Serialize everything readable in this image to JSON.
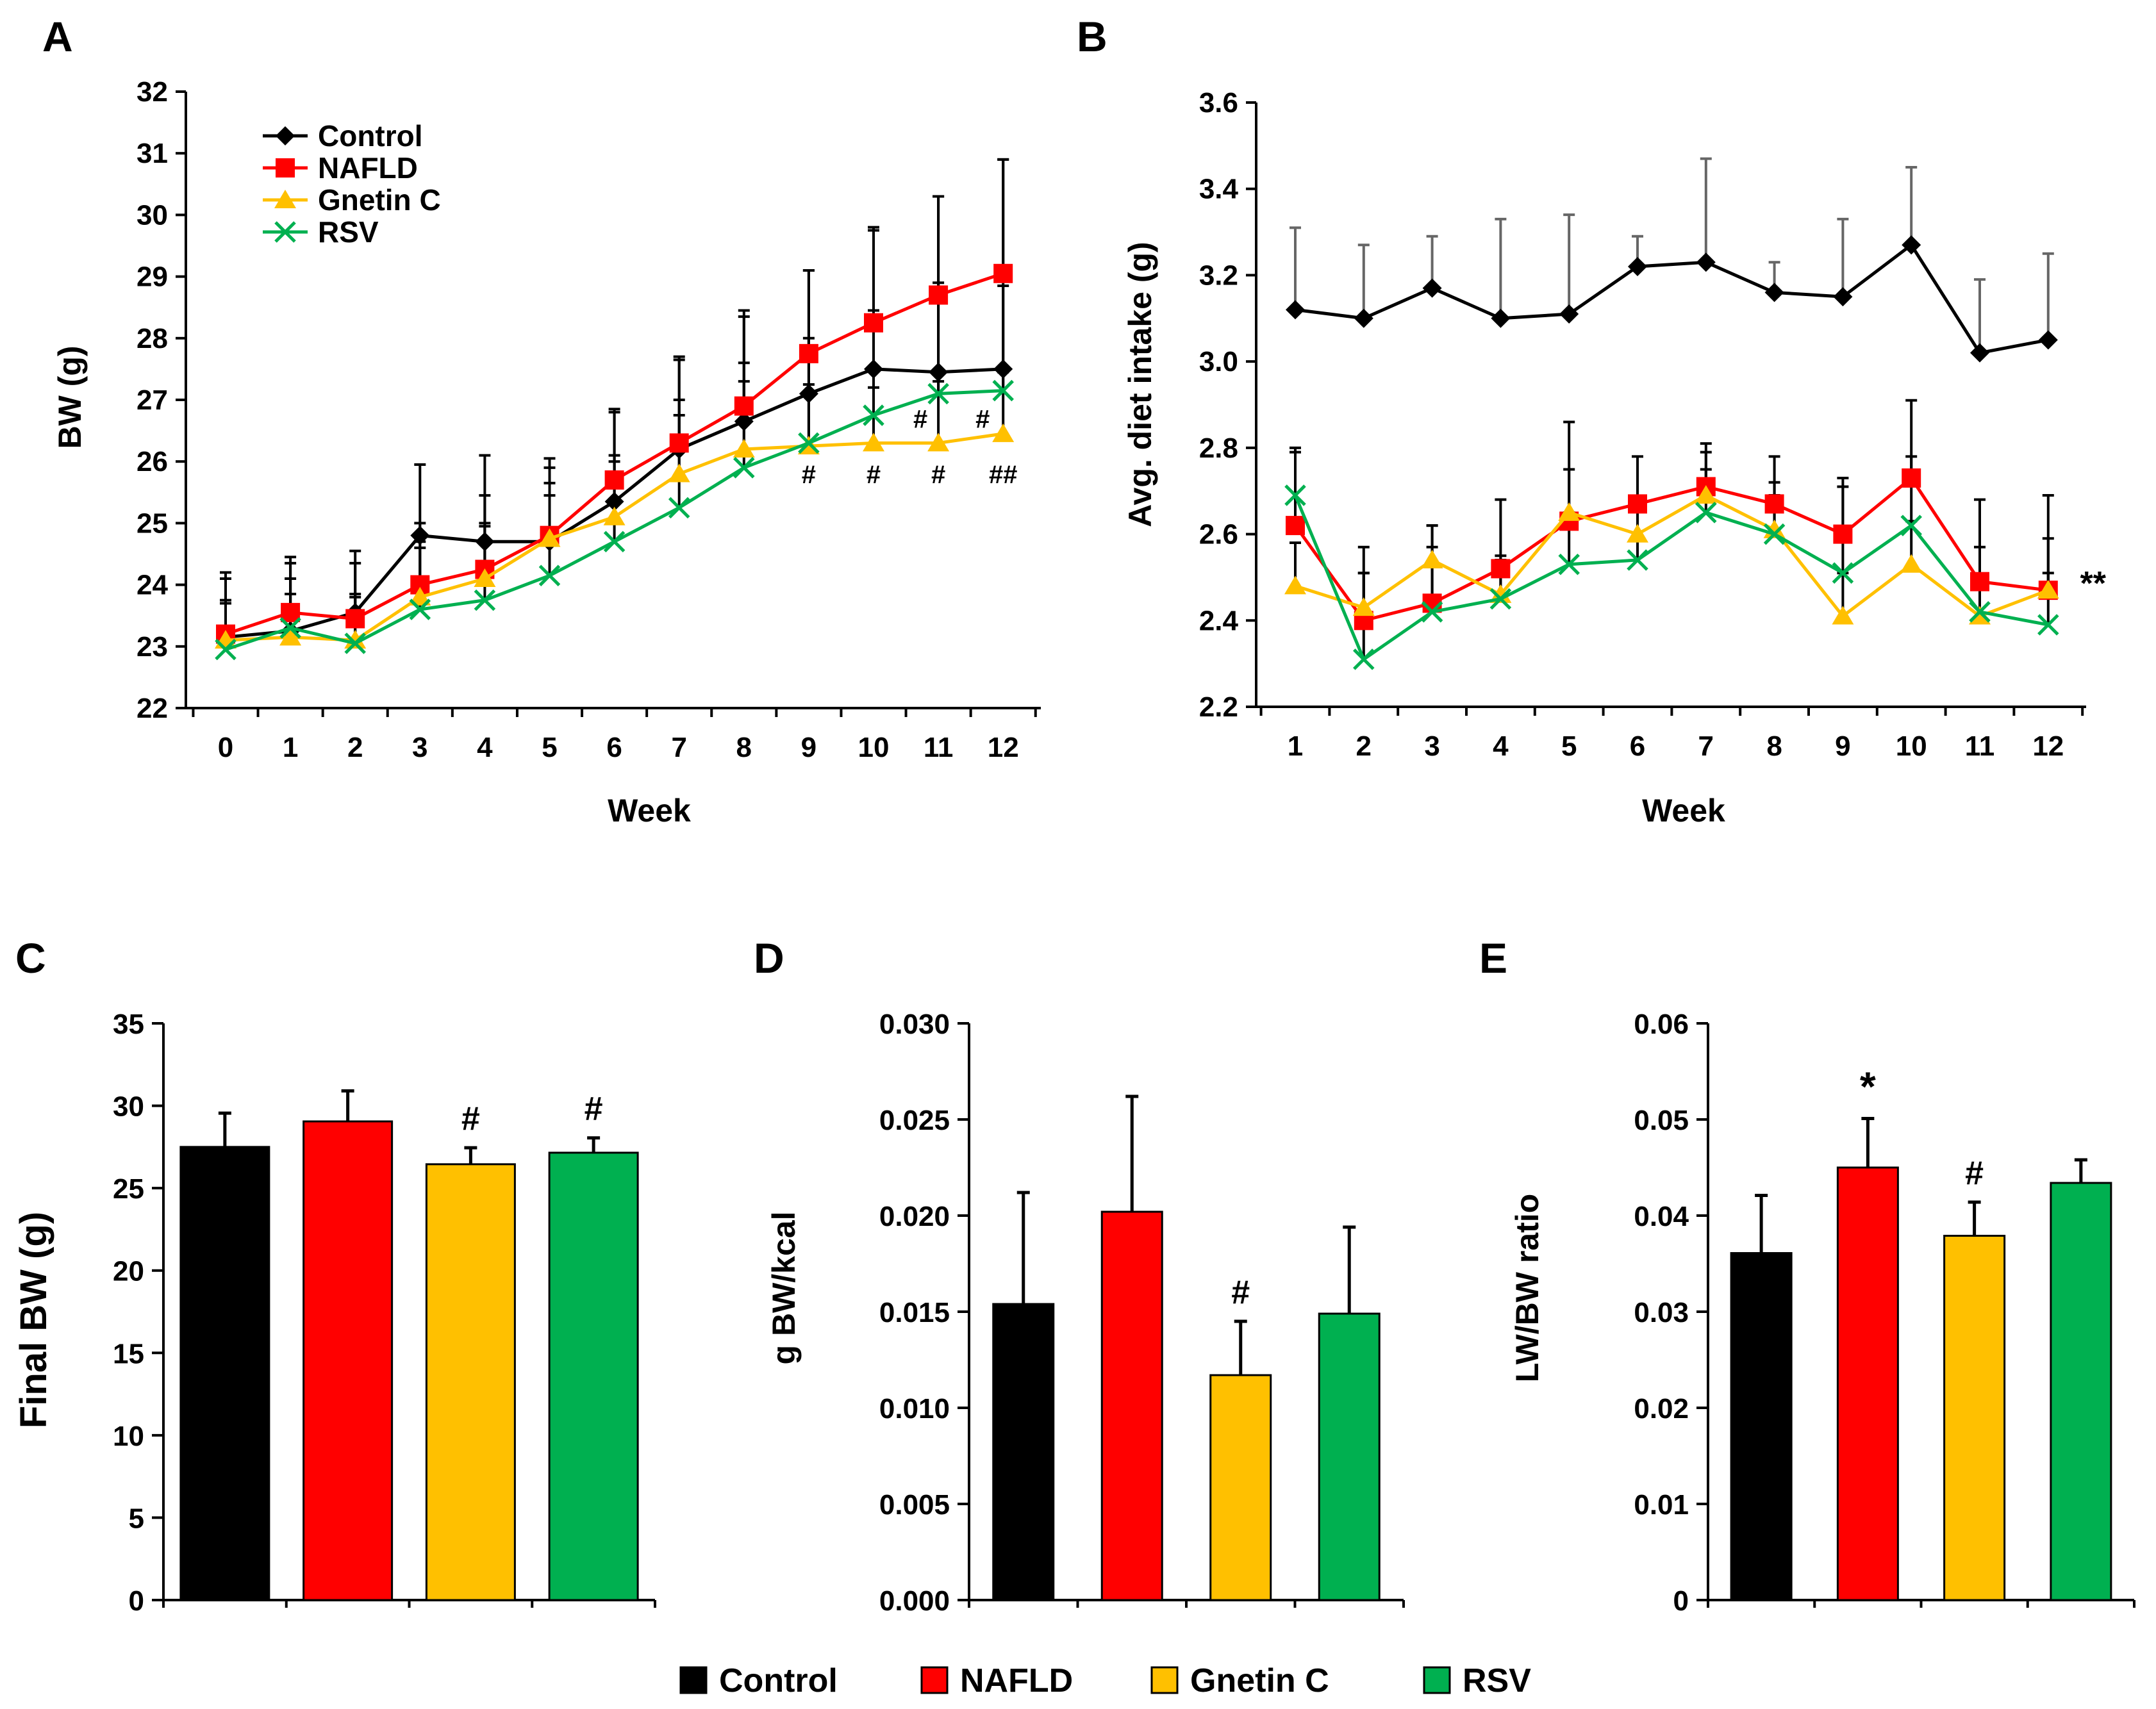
{
  "legend": {
    "labels": [
      "Control",
      "NAFLD",
      "Gnetin C",
      "RSV"
    ],
    "colors": [
      "#000000",
      "#ff0000",
      "#ffc000",
      "#00b050"
    ]
  },
  "chart_data": [
    {
      "panel": "A",
      "type": "line",
      "xlabel": "Week",
      "ylabel": "BW (g)",
      "ylim": [
        22,
        32
      ],
      "yticks": [
        22,
        23,
        24,
        25,
        26,
        27,
        28,
        29,
        30,
        31,
        32
      ],
      "x": [
        0,
        1,
        2,
        3,
        4,
        5,
        6,
        7,
        8,
        9,
        10,
        11,
        12
      ],
      "series": [
        {
          "name": "Control",
          "color": "#000000",
          "marker": "diamond",
          "values": [
            23.15,
            23.25,
            23.55,
            24.8,
            24.7,
            24.7,
            25.35,
            26.2,
            26.65,
            27.1,
            27.5,
            27.45,
            27.5
          ],
          "errors": [
            1.05,
            1.2,
            1.0,
            1.15,
            1.4,
            1.35,
            1.5,
            1.5,
            1.8,
            2.0,
            2.3,
            2.85,
            3.4
          ]
        },
        {
          "name": "NAFLD",
          "color": "#ff0000",
          "marker": "square",
          "values": [
            23.2,
            23.55,
            23.45,
            24.0,
            24.25,
            24.8,
            25.7,
            26.3,
            26.9,
            27.75,
            28.25,
            28.7,
            29.05
          ],
          "errors": [
            0.9,
            0.8,
            0.9,
            1.0,
            1.2,
            1.1,
            1.1,
            1.35,
            1.45,
            1.35,
            1.5,
            1.6,
            1.85
          ]
        },
        {
          "name": "Gnetin C",
          "color": "#ffc000",
          "marker": "triangle",
          "values": [
            23.1,
            23.15,
            23.1,
            23.8,
            24.1,
            24.75,
            25.1,
            25.8,
            26.2,
            26.25,
            26.3,
            26.3,
            26.45
          ],
          "errors": [
            0.6,
            0.7,
            0.7,
            0.9,
            0.9,
            0.9,
            1.0,
            1.2,
            1.1,
            1.0,
            0.9,
            1.0,
            1.0
          ]
        },
        {
          "name": "RSV",
          "color": "#00b050",
          "marker": "x",
          "values": [
            22.95,
            23.3,
            23.05,
            23.6,
            23.75,
            24.15,
            24.7,
            25.25,
            25.9,
            26.3,
            26.75,
            27.1,
            27.15
          ],
          "errors": [
            0.8,
            0.8,
            0.8,
            1.0,
            1.2,
            1.3,
            1.3,
            1.5,
            1.7,
            1.7,
            1.7,
            1.8,
            1.7
          ]
        }
      ],
      "annotations": [
        {
          "x": 9,
          "text": "#"
        },
        {
          "x": 10,
          "text": "#"
        },
        {
          "x": 11,
          "text": "#"
        },
        {
          "x": 11,
          "text": "#"
        },
        {
          "x": 12,
          "text": "#"
        },
        {
          "x": 12,
          "text": "##"
        }
      ]
    },
    {
      "panel": "B",
      "type": "line",
      "xlabel": "Week",
      "ylabel": "Avg. diet intake (g)",
      "ylim": [
        2.2,
        3.6
      ],
      "yticks": [
        "2.2",
        "2.4",
        "2.6",
        "2.8",
        "3.0",
        "3.2",
        "3.4",
        "3.6"
      ],
      "x": [
        1,
        2,
        3,
        4,
        5,
        6,
        7,
        8,
        9,
        10,
        11,
        12
      ],
      "series": [
        {
          "name": "Control",
          "color": "#000000",
          "marker": "diamond",
          "values": [
            3.12,
            3.1,
            3.17,
            3.1,
            3.11,
            3.22,
            3.23,
            3.16,
            3.15,
            3.27,
            3.02,
            3.05
          ],
          "errors": [
            0.19,
            0.17,
            0.12,
            0.23,
            0.23,
            0.07,
            0.24,
            0.07,
            0.18,
            0.18,
            0.17,
            0.2
          ]
        },
        {
          "name": "NAFLD",
          "color": "#ff0000",
          "marker": "square",
          "values": [
            2.62,
            2.4,
            2.44,
            2.52,
            2.63,
            2.67,
            2.71,
            2.67,
            2.6,
            2.73,
            2.49,
            2.47
          ],
          "errors": [
            0.18,
            0.17,
            0.18,
            0.16,
            0.23,
            0.11,
            0.1,
            0.11,
            0.13,
            0.18,
            0.19,
            0.22
          ]
        },
        {
          "name": "Gnetin C",
          "color": "#ffc000",
          "marker": "triangle",
          "values": [
            2.48,
            2.43,
            2.54,
            2.46,
            2.65,
            2.6,
            2.69,
            2.61,
            2.41,
            2.53,
            2.41,
            2.47
          ],
          "errors": [
            0.1,
            0.08,
            0.08,
            0.08,
            0.1,
            0.08,
            0.1,
            0.08,
            0.1,
            0.1,
            0.08,
            0.12
          ]
        },
        {
          "name": "RSV",
          "color": "#00b050",
          "marker": "x",
          "values": [
            2.69,
            2.31,
            2.42,
            2.45,
            2.53,
            2.54,
            2.65,
            2.6,
            2.51,
            2.62,
            2.42,
            2.39
          ],
          "errors": [
            0.1,
            0.2,
            0.15,
            0.1,
            0.12,
            0.12,
            0.1,
            0.12,
            0.2,
            0.16,
            0.15,
            0.12
          ]
        }
      ],
      "annotations": [
        {
          "x": 12,
          "text": "**"
        }
      ]
    },
    {
      "panel": "C",
      "type": "bar",
      "ylabel": "Final BW (g)",
      "ylim": [
        0,
        35
      ],
      "yticks": [
        "0",
        "5",
        "10",
        "15",
        "20",
        "25",
        "30",
        "35"
      ],
      "categories": [
        "Control",
        "NAFLD",
        "Gnetin C",
        "RSV"
      ],
      "values": [
        27.5,
        29.05,
        26.45,
        27.15
      ],
      "errors": [
        2.05,
        1.85,
        1.0,
        0.9
      ],
      "annotations": [
        "",
        "",
        "#",
        "#"
      ]
    },
    {
      "panel": "D",
      "type": "bar",
      "ylabel": "g BW/kcal",
      "ylim": [
        0,
        0.03
      ],
      "yticks": [
        "0.000",
        "0.005",
        "0.010",
        "0.015",
        "0.020",
        "0.025",
        "0.030"
      ],
      "categories": [
        "Control",
        "NAFLD",
        "Gnetin C",
        "RSV"
      ],
      "values": [
        0.0154,
        0.0202,
        0.0117,
        0.0149
      ],
      "errors": [
        0.0058,
        0.006,
        0.0028,
        0.0045
      ],
      "annotations": [
        "",
        "",
        "#",
        ""
      ]
    },
    {
      "panel": "E",
      "type": "bar",
      "ylabel": "LW/BW ratio",
      "ylim": [
        0,
        0.06
      ],
      "yticks": [
        "0",
        "0.01",
        "0.02",
        "0.03",
        "0.04",
        "0.05",
        "0.06"
      ],
      "categories": [
        "Control",
        "NAFLD",
        "Gnetin C",
        "RSV"
      ],
      "values": [
        0.0361,
        0.045,
        0.0379,
        0.0434
      ],
      "errors": [
        0.006,
        0.0051,
        0.0035,
        0.0024
      ],
      "annotations": [
        "",
        "*",
        "#",
        ""
      ]
    }
  ]
}
